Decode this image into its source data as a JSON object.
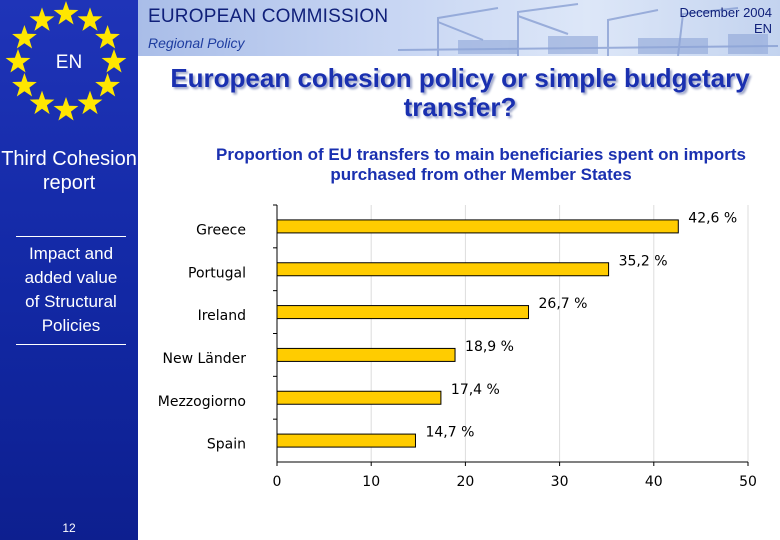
{
  "sidebar": {
    "lang_code": "EN",
    "report_title": "Third Cohesion report",
    "report_subtitle": "Impact and added value of Structural Policies",
    "page_number": "12"
  },
  "header": {
    "org_name": "EUROPEAN COMMISSION",
    "dept_name": "Regional Policy",
    "date": "December 2004",
    "lang": "EN"
  },
  "slide": {
    "title": "European cohesion policy or simple budgetary transfer?"
  },
  "colors": {
    "bar_fill": "#ffcc00",
    "bar_stroke": "#000000",
    "sidebar_blue": "#1228a4",
    "star_yellow": "#ffe600",
    "title_blue": "#1a30b0"
  },
  "chart_data": {
    "type": "bar",
    "orientation": "horizontal",
    "title": "Proportion of EU transfers to main beneficiaries spent on imports purchased from other Member States",
    "categories": [
      "Greece",
      "Portugal",
      "Ireland",
      "New Länder",
      "Mezzogiorno",
      "Spain"
    ],
    "values": [
      42.6,
      35.2,
      26.7,
      18.9,
      17.4,
      14.7
    ],
    "value_labels": [
      "42,6 %",
      "35,2 %",
      "26,7 %",
      "18,9 %",
      "17,4 %",
      "14,7 %"
    ],
    "xlim": [
      0,
      50
    ],
    "xticks": [
      0,
      10,
      20,
      30,
      40,
      50
    ],
    "xlabel": "",
    "ylabel": "",
    "grid": true,
    "legend": "none"
  }
}
